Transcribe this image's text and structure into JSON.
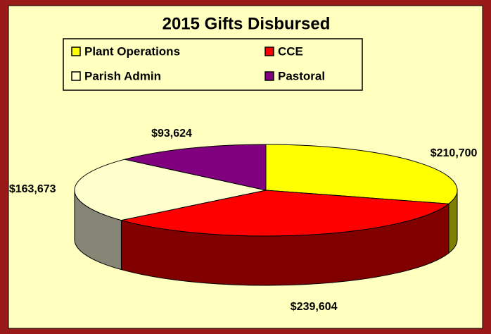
{
  "chart_data": {
    "type": "pie",
    "title": "2015 Gifts Disbursed",
    "categories": [
      "Plant Operations",
      "CCE",
      "Parish Admin",
      "Pastoral"
    ],
    "values": [
      210700,
      239604,
      163673,
      93624
    ],
    "value_labels": [
      "$210,700",
      "$239,604",
      "$163,673",
      "$93,624"
    ],
    "colors": [
      "#ffff00",
      "#ff0000",
      "#ffffcc",
      "#800080"
    ],
    "side_colors": [
      "#808000",
      "#800000",
      "#868676",
      "#400040"
    ],
    "three_d": true
  }
}
